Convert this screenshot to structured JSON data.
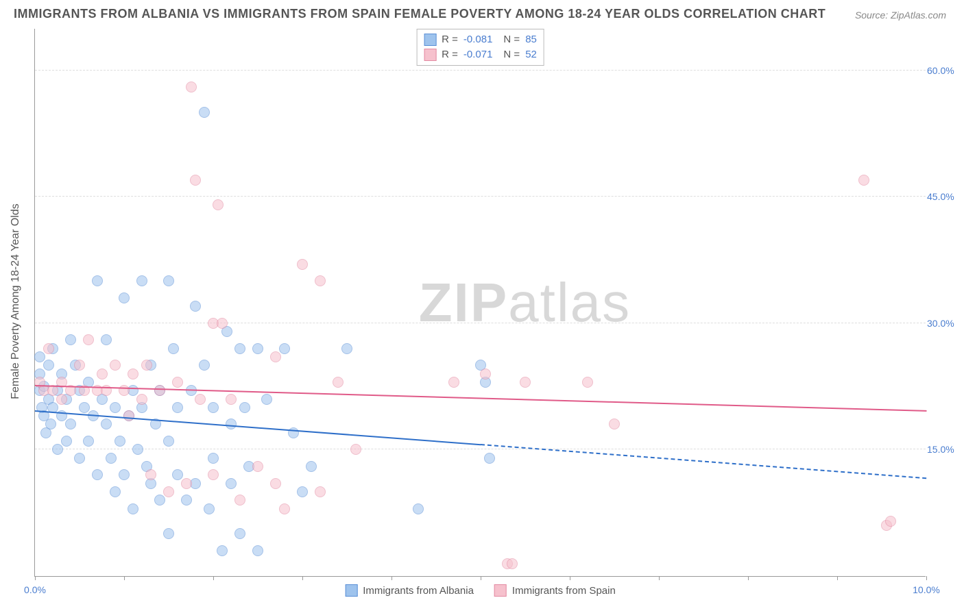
{
  "title": "IMMIGRANTS FROM ALBANIA VS IMMIGRANTS FROM SPAIN FEMALE POVERTY AMONG 18-24 YEAR OLDS CORRELATION CHART",
  "source": "Source: ZipAtlas.com",
  "watermark_bold": "ZIP",
  "watermark_light": "atlas",
  "chart": {
    "type": "scatter",
    "background_color": "#ffffff",
    "grid_color": "#dddddd",
    "axis_color": "#999999",
    "label_color": "#555555",
    "tick_label_color": "#4a7dcf",
    "ylabel": "Female Poverty Among 18-24 Year Olds",
    "xlim": [
      0,
      10
    ],
    "ylim": [
      0,
      65
    ],
    "yticks": [
      15,
      30,
      45,
      60
    ],
    "ytick_labels": [
      "15.0%",
      "30.0%",
      "45.0%",
      "60.0%"
    ],
    "xticks": [
      0,
      1,
      2,
      3,
      4,
      5,
      6,
      7,
      8,
      9,
      10
    ],
    "xtick_labels_shown": {
      "0": "0.0%",
      "10": "10.0%"
    },
    "marker_radius": 8,
    "marker_opacity": 0.55,
    "marker_stroke_width": 1,
    "series": [
      {
        "name": "Immigrants from Albania",
        "color_fill": "#9ec3ed",
        "color_stroke": "#5a8fd6",
        "r_label": "R = ",
        "r_value": "-0.081",
        "n_label": "N = ",
        "n_value": "85",
        "trend": {
          "x1": 0,
          "y1": 19.5,
          "x2": 5,
          "y2": 15.5,
          "x2_ext": 10,
          "y2_ext": 11.5,
          "color": "#2e6fc9",
          "width": 2
        },
        "points": [
          [
            0.05,
            26
          ],
          [
            0.05,
            24
          ],
          [
            0.05,
            22
          ],
          [
            0.08,
            20
          ],
          [
            0.1,
            19
          ],
          [
            0.1,
            22.5
          ],
          [
            0.12,
            17
          ],
          [
            0.15,
            25
          ],
          [
            0.15,
            21
          ],
          [
            0.18,
            18
          ],
          [
            0.2,
            27
          ],
          [
            0.2,
            20
          ],
          [
            0.25,
            22
          ],
          [
            0.25,
            15
          ],
          [
            0.3,
            24
          ],
          [
            0.3,
            19
          ],
          [
            0.35,
            16
          ],
          [
            0.35,
            21
          ],
          [
            0.4,
            28
          ],
          [
            0.4,
            18
          ],
          [
            0.45,
            25
          ],
          [
            0.5,
            22
          ],
          [
            0.5,
            14
          ],
          [
            0.55,
            20
          ],
          [
            0.6,
            23
          ],
          [
            0.6,
            16
          ],
          [
            0.65,
            19
          ],
          [
            0.7,
            35
          ],
          [
            0.7,
            12
          ],
          [
            0.75,
            21
          ],
          [
            0.8,
            28
          ],
          [
            0.8,
            18
          ],
          [
            0.85,
            14
          ],
          [
            0.9,
            20
          ],
          [
            0.9,
            10
          ],
          [
            0.95,
            16
          ],
          [
            1.0,
            33
          ],
          [
            1.0,
            12
          ],
          [
            1.05,
            19
          ],
          [
            1.1,
            22
          ],
          [
            1.1,
            8
          ],
          [
            1.15,
            15
          ],
          [
            1.2,
            35
          ],
          [
            1.2,
            20
          ],
          [
            1.25,
            13
          ],
          [
            1.3,
            25
          ],
          [
            1.3,
            11
          ],
          [
            1.35,
            18
          ],
          [
            1.4,
            22
          ],
          [
            1.4,
            9
          ],
          [
            1.5,
            35
          ],
          [
            1.5,
            16
          ],
          [
            1.5,
            5
          ],
          [
            1.55,
            27
          ],
          [
            1.6,
            20
          ],
          [
            1.6,
            12
          ],
          [
            1.7,
            9
          ],
          [
            1.75,
            22
          ],
          [
            1.8,
            11
          ],
          [
            1.8,
            32
          ],
          [
            1.9,
            55
          ],
          [
            1.9,
            25
          ],
          [
            1.95,
            8
          ],
          [
            2.0,
            20
          ],
          [
            2.0,
            14
          ],
          [
            2.1,
            3
          ],
          [
            2.15,
            29
          ],
          [
            2.2,
            18
          ],
          [
            2.2,
            11
          ],
          [
            2.3,
            27
          ],
          [
            2.3,
            5
          ],
          [
            2.35,
            20
          ],
          [
            2.4,
            13
          ],
          [
            2.5,
            27
          ],
          [
            2.5,
            3
          ],
          [
            2.6,
            21
          ],
          [
            2.8,
            27
          ],
          [
            2.9,
            17
          ],
          [
            3.0,
            10
          ],
          [
            3.1,
            13
          ],
          [
            3.5,
            27
          ],
          [
            4.3,
            8
          ],
          [
            5.0,
            25
          ],
          [
            5.05,
            23
          ],
          [
            5.1,
            14
          ]
        ]
      },
      {
        "name": "Immigrants from Spain",
        "color_fill": "#f6c1cd",
        "color_stroke": "#e38aa2",
        "r_label": "R = ",
        "r_value": "-0.071",
        "n_label": "N = ",
        "n_value": "52",
        "trend": {
          "x1": 0,
          "y1": 22.5,
          "x2": 10,
          "y2": 19.5,
          "color": "#e05a88",
          "width": 2
        },
        "points": [
          [
            0.05,
            23
          ],
          [
            0.1,
            22
          ],
          [
            0.15,
            27
          ],
          [
            0.2,
            22
          ],
          [
            0.3,
            23
          ],
          [
            0.3,
            21
          ],
          [
            0.4,
            22
          ],
          [
            0.5,
            25
          ],
          [
            0.55,
            22
          ],
          [
            0.6,
            28
          ],
          [
            0.7,
            22
          ],
          [
            0.75,
            24
          ],
          [
            0.8,
            22
          ],
          [
            0.9,
            25
          ],
          [
            1.0,
            22
          ],
          [
            1.05,
            19
          ],
          [
            1.1,
            24
          ],
          [
            1.2,
            21
          ],
          [
            1.25,
            25
          ],
          [
            1.3,
            12
          ],
          [
            1.4,
            22
          ],
          [
            1.5,
            10
          ],
          [
            1.6,
            23
          ],
          [
            1.7,
            11
          ],
          [
            1.75,
            58
          ],
          [
            1.8,
            47
          ],
          [
            1.85,
            21
          ],
          [
            2.0,
            30
          ],
          [
            2.0,
            12
          ],
          [
            2.05,
            44
          ],
          [
            2.1,
            30
          ],
          [
            2.2,
            21
          ],
          [
            2.3,
            9
          ],
          [
            2.5,
            13
          ],
          [
            2.7,
            26
          ],
          [
            2.7,
            11
          ],
          [
            2.8,
            8
          ],
          [
            3.0,
            37
          ],
          [
            3.2,
            10
          ],
          [
            3.2,
            35
          ],
          [
            3.4,
            23
          ],
          [
            3.6,
            15
          ],
          [
            4.7,
            23
          ],
          [
            5.05,
            24
          ],
          [
            5.3,
            1.5
          ],
          [
            5.35,
            1.5
          ],
          [
            5.5,
            23
          ],
          [
            6.2,
            23
          ],
          [
            6.5,
            18
          ],
          [
            9.3,
            47
          ],
          [
            9.55,
            6
          ],
          [
            9.6,
            6.5
          ]
        ]
      }
    ]
  }
}
